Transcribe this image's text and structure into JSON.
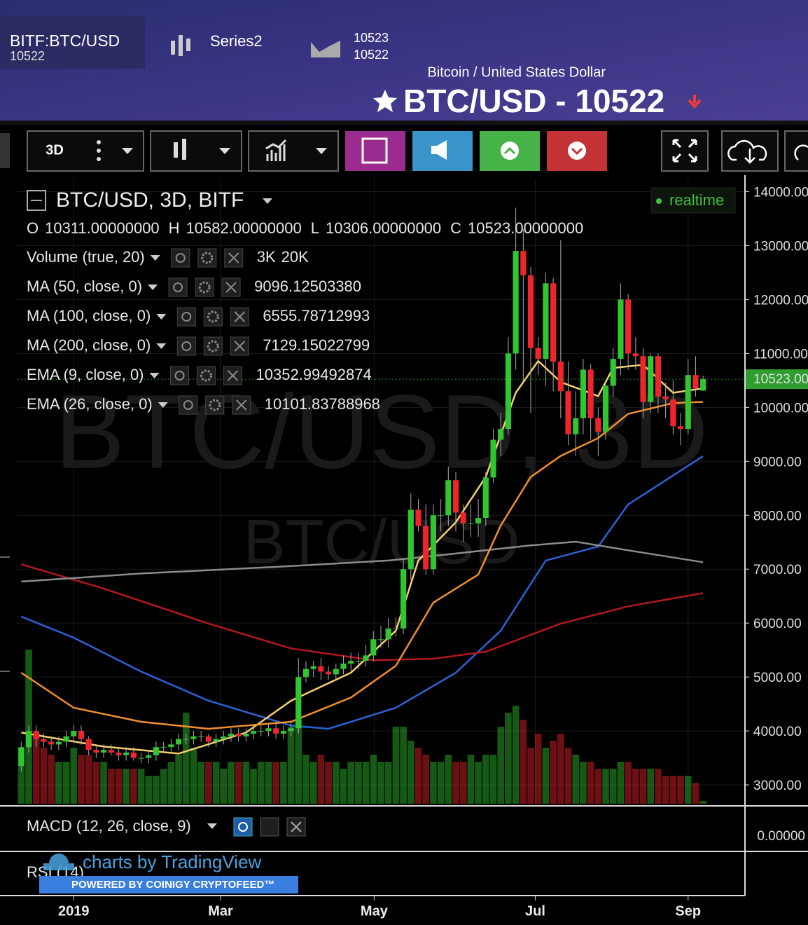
{
  "header": {
    "symbol": "BITF:BTC/USD",
    "symbol_price": "10522",
    "series_name": "Series2",
    "series_values": [
      "10523",
      "10522"
    ],
    "subtitle": "Bitcoin / United States Dollar",
    "title": "BTC/USD - 10522"
  },
  "toolbar": {
    "interval": "3D"
  },
  "legend": {
    "title": "BTC/USD, 3D, BITF",
    "status": "realtime",
    "ohlc": [
      {
        "label": "O",
        "value": "10311.00000000"
      },
      {
        "label": "H",
        "value": "10582.00000000"
      },
      {
        "label": "L",
        "value": "10306.00000000"
      },
      {
        "label": "C",
        "value": "10523.00000000"
      }
    ],
    "indicators": [
      {
        "name": "Volume (true, 20)",
        "values": [
          "3K",
          "20K"
        ],
        "colors": [
          "#3fbf3f",
          "#3d8ef0"
        ]
      },
      {
        "name": "MA (50, close, 0)",
        "values": [
          "9096.12503380"
        ],
        "colors": [
          "#2d62d6"
        ]
      },
      {
        "name": "MA (100, close, 0)",
        "values": [
          "6555.78712993"
        ],
        "colors": [
          "#e8231f"
        ]
      },
      {
        "name": "MA (200, close, 0)",
        "values": [
          "7129.15022799"
        ],
        "colors": [
          "#bdbdbd"
        ]
      },
      {
        "name": "EMA (9, close, 0)",
        "values": [
          "10352.99492874"
        ],
        "colors": [
          "#f7c948"
        ]
      },
      {
        "name": "EMA (26, close, 0)",
        "values": [
          "10101.83788968"
        ],
        "colors": [
          "#f59a3a"
        ]
      }
    ]
  },
  "watermark": {
    "primary": "BTC/USD, 3D",
    "secondary": "BTC/USD"
  },
  "chart_data": {
    "type": "candlestick",
    "up_color": "#2fc62f",
    "down_color": "#f0242a",
    "open": [
      3350,
      3700,
      4000,
      3850,
      3800,
      3750,
      3800,
      3900,
      4000,
      3850,
      3650,
      3600,
      3650,
      3600,
      3550,
      3600,
      3500,
      3500,
      3550,
      3700,
      3700,
      3750,
      3850,
      3850,
      3900,
      3900,
      3800,
      3850,
      3900,
      3950,
      3900,
      3950,
      4000,
      4000,
      4050,
      3950,
      4000,
      4050,
      5000,
      5150,
      5200,
      5100,
      5050,
      5150,
      5250,
      5300,
      5300,
      5400,
      5700,
      5700,
      5900,
      5900,
      7000,
      8100,
      7800,
      7000,
      8000,
      8000,
      8650,
      8050,
      7850,
      7850,
      7950,
      8700,
      9400,
      9600,
      11000,
      12900,
      12450,
      11100,
      10900,
      12300,
      10850,
      10300,
      9500,
      9800,
      10700,
      9800,
      9550,
      10400,
      10900,
      12000,
      11000,
      10950,
      10100,
      10950,
      10200,
      10150,
      9650,
      9600,
      10600,
      10311
    ],
    "high": [
      3800,
      4100,
      4100,
      3950,
      3900,
      3900,
      4000,
      4100,
      4100,
      3900,
      3750,
      3750,
      3750,
      3700,
      3700,
      3700,
      3600,
      3650,
      3800,
      3800,
      3850,
      3950,
      3950,
      4000,
      4000,
      3950,
      3950,
      4000,
      4050,
      4050,
      4050,
      4100,
      4100,
      4150,
      4150,
      4100,
      4150,
      5350,
      5300,
      5300,
      5350,
      5200,
      5250,
      5400,
      5450,
      5450,
      5600,
      5850,
      5950,
      6100,
      6100,
      7200,
      8400,
      8300,
      8200,
      8200,
      8300,
      8900,
      8800,
      8200,
      8200,
      8300,
      8800,
      9600,
      9900,
      11300,
      13700,
      13300,
      12600,
      11300,
      12500,
      12400,
      13100,
      10850,
      10300,
      10900,
      10800,
      10000,
      10500,
      11100,
      12300,
      12100,
      11300,
      11100,
      11000,
      11000,
      10450,
      10500,
      9900,
      10900,
      10950,
      10582
    ],
    "low": [
      3250,
      3600,
      3700,
      3700,
      3650,
      3650,
      3700,
      3800,
      3750,
      3550,
      3500,
      3500,
      3550,
      3450,
      3450,
      3450,
      3400,
      3400,
      3450,
      3600,
      3600,
      3650,
      3750,
      3750,
      3800,
      3700,
      3700,
      3750,
      3800,
      3800,
      3800,
      3850,
      3900,
      3900,
      3850,
      3850,
      3900,
      3950,
      4900,
      5000,
      4950,
      4950,
      4950,
      5050,
      5100,
      5150,
      5200,
      5300,
      5550,
      5550,
      5750,
      5800,
      6800,
      7700,
      6900,
      6900,
      7700,
      7800,
      7700,
      7500,
      7600,
      7600,
      7800,
      8600,
      9100,
      9500,
      10700,
      10500,
      9900,
      10600,
      10400,
      10300,
      9800,
      9300,
      9100,
      9500,
      9400,
      9100,
      9400,
      10200,
      10600,
      10700,
      10700,
      9800,
      9900,
      9900,
      9800,
      9500,
      9300,
      9500,
      10200,
      10306
    ],
    "close": [
      3700,
      4000,
      3850,
      3800,
      3750,
      3800,
      3900,
      4000,
      3850,
      3650,
      3600,
      3650,
      3600,
      3550,
      3600,
      3500,
      3500,
      3550,
      3700,
      3700,
      3750,
      3850,
      3850,
      3900,
      3900,
      3800,
      3850,
      3900,
      3950,
      3900,
      3950,
      4000,
      4000,
      4050,
      3950,
      4000,
      4050,
      5000,
      5150,
      5200,
      5100,
      5050,
      5150,
      5250,
      5300,
      5300,
      5400,
      5700,
      5700,
      5900,
      5900,
      7000,
      8100,
      7800,
      7000,
      8000,
      8000,
      8650,
      8050,
      7850,
      7850,
      7950,
      8700,
      9400,
      9600,
      11000,
      12900,
      12450,
      11100,
      10900,
      12300,
      10850,
      10300,
      9500,
      9800,
      10700,
      9800,
      9550,
      10400,
      10900,
      12000,
      11000,
      10950,
      10100,
      10950,
      10200,
      10150,
      9650,
      9600,
      10600,
      10350,
      10523
    ],
    "volume": [
      4,
      11,
      5,
      4,
      3.5,
      3,
      3,
      4,
      3.5,
      3.5,
      3,
      3,
      2.5,
      2.5,
      2.5,
      2.5,
      2.5,
      2,
      2,
      2.5,
      3,
      3.5,
      6.5,
      4,
      3,
      3,
      3,
      2.5,
      3,
      3,
      3,
      2.5,
      3,
      3,
      3,
      3,
      5.5,
      6,
      3.5,
      3,
      3.5,
      3,
      3,
      2.5,
      3,
      3,
      3,
      3.5,
      3,
      3,
      5.5,
      5.5,
      4.5,
      4,
      3.5,
      3,
      3,
      3.5,
      3,
      3,
      3.5,
      3,
      3.5,
      3.5,
      5.5,
      6.5,
      7,
      6,
      4,
      5,
      4,
      4.5,
      5,
      4,
      3.5,
      3,
      3,
      2.5,
      2.5,
      2.5,
      3,
      3,
      2.5,
      2.5,
      2.5,
      2.5,
      2,
      2,
      2,
      2,
      1.5,
      0.2
    ],
    "series": [
      {
        "name": "MA (50, close, 0)",
        "color": "#2d62d6",
        "x": [
          0,
          7,
          16,
          25,
          36,
          41,
          50,
          58,
          64,
          70,
          77,
          81,
          91
        ],
        "values": [
          6120,
          5730,
          5100,
          4560,
          4100,
          4040,
          4430,
          5080,
          5860,
          7160,
          7420,
          8200,
          9096
        ]
      },
      {
        "name": "MA (100, close, 0)",
        "color": "#b3191a",
        "x": [
          0,
          11,
          25,
          36,
          47,
          55,
          62,
          72,
          81,
          91
        ],
        "values": [
          7090,
          6640,
          5990,
          5530,
          5310,
          5340,
          5470,
          5990,
          6310,
          6556
        ]
      },
      {
        "name": "MA (200, close, 0)",
        "color": "#8c8c8c",
        "x": [
          0,
          16,
          35,
          49,
          58,
          68,
          74,
          81,
          91
        ],
        "values": [
          6770,
          6920,
          7050,
          7160,
          7290,
          7440,
          7510,
          7350,
          7129
        ]
      },
      {
        "name": "EMA (9, close, 0)",
        "color": "#f7d070",
        "x": [
          0,
          11,
          21,
          30,
          36,
          44,
          50,
          53,
          58,
          62,
          66,
          69,
          72,
          77,
          79,
          83,
          87,
          91
        ],
        "values": [
          3970,
          3710,
          3580,
          3970,
          4560,
          5080,
          5860,
          7160,
          7870,
          8710,
          10270,
          10860,
          10470,
          10210,
          10730,
          10790,
          10270,
          10353
        ]
      },
      {
        "name": "EMA (26, close, 0)",
        "color": "#f08f2e",
        "x": [
          0,
          7,
          16,
          25,
          36,
          44,
          50,
          55,
          61,
          64,
          68,
          72,
          77,
          81,
          87,
          91
        ],
        "values": [
          5080,
          4430,
          4170,
          4040,
          4170,
          4620,
          5210,
          6380,
          6900,
          7810,
          8710,
          9100,
          9430,
          9880,
          10080,
          10102
        ]
      }
    ],
    "last_price": {
      "value": 10523,
      "label": "10523.00"
    },
    "ylim": [
      2650,
      14240
    ],
    "yticks": [
      {
        "value": 14000,
        "label": "14000.00"
      },
      {
        "value": 13000,
        "label": "13000.00"
      },
      {
        "value": 12000,
        "label": "12000.00"
      },
      {
        "value": 11000,
        "label": "11000.00"
      },
      {
        "value": 10000,
        "label": "10000.00"
      },
      {
        "value": 9000,
        "label": "9000.00"
      },
      {
        "value": 8000,
        "label": "8000.00"
      },
      {
        "value": 7000,
        "label": "7000.00"
      },
      {
        "value": 6000,
        "label": "6000.00"
      },
      {
        "value": 5000,
        "label": "5000.00"
      },
      {
        "value": 4000,
        "label": "4000.00"
      },
      {
        "value": 3000,
        "label": "3000.00"
      }
    ],
    "xlim": [
      -0.5,
      96.5
    ],
    "xticks": [
      {
        "value": 7,
        "label": "2019"
      },
      {
        "value": 26.6,
        "label": "Mar"
      },
      {
        "value": 47.1,
        "label": "May"
      },
      {
        "value": 68.6,
        "label": "Jul"
      },
      {
        "value": 89,
        "label": "Sep"
      }
    ],
    "grid": true
  },
  "panes": [
    {
      "name": "MACD (12, 26, close, 9)",
      "axis_label": "0.00000"
    },
    {
      "name": "RSI (14)"
    }
  ],
  "branding": {
    "primary": "charts by TradingView",
    "secondary": "POWERED BY COINIGY CRYPTOFEED™"
  }
}
